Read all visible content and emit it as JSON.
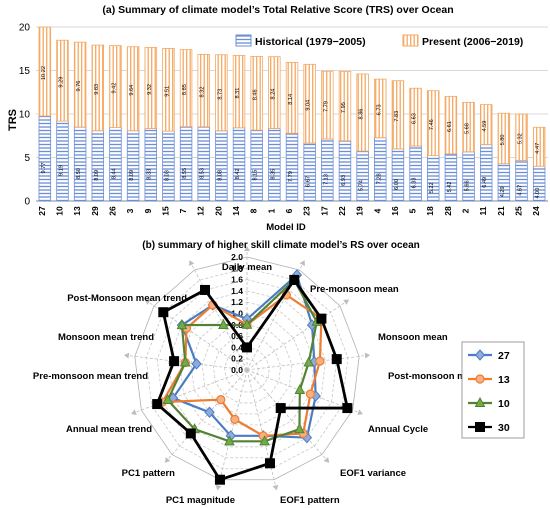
{
  "chart_data": [
    {
      "type": "bar",
      "title": "(a) Summary of climate model’s Total Relative Score (TRS) over Ocean",
      "xlabel": "Model ID",
      "ylabel": "TRS",
      "ylim": [
        0,
        20
      ],
      "yticks": [
        0,
        5,
        10,
        15,
        20
      ],
      "grid": true,
      "stacked": true,
      "legend_position": "top-right",
      "categories": [
        "27",
        "10",
        "13",
        "29",
        "26",
        "3",
        "9",
        "15",
        "7",
        "12",
        "20",
        "14",
        "8",
        "1",
        "6",
        "23",
        "17",
        "22",
        "19",
        "4",
        "16",
        "5",
        "18",
        "28",
        "2",
        "11",
        "21",
        "25",
        "24"
      ],
      "series": [
        {
          "name": "Historical (1979−2005)",
          "color": "#6b8fd6",
          "values": [
            9.77,
            9.19,
            8.5,
            8.09,
            8.44,
            8.09,
            8.33,
            8.03,
            8.55,
            8.53,
            8.08,
            8.42,
            8.15,
            8.35,
            7.79,
            6.67,
            7.13,
            6.93,
            5.74,
            7.28,
            6.0,
            6.33,
            5.22,
            5.42,
            5.66,
            6.49,
            4.29,
            4.67,
            4.0
          ]
        },
        {
          "name": "Present (2006−2019)",
          "color": "#f5a862",
          "values": [
            10.22,
            9.29,
            9.76,
            9.83,
            9.42,
            9.64,
            9.32,
            9.51,
            8.85,
            8.32,
            8.73,
            8.31,
            8.46,
            8.24,
            8.14,
            9.04,
            7.79,
            7.95,
            8.86,
            6.73,
            7.83,
            6.63,
            7.46,
            6.61,
            5.68,
            4.59,
            5.8,
            5.32,
            4.47
          ]
        }
      ]
    },
    {
      "type": "radar",
      "title": "(b) summary of higher skill climate model’s RS over ocean",
      "rlim": [
        0,
        2.0
      ],
      "rticks": [
        "0.0",
        "0.2",
        "0.4",
        "0.6",
        "0.8",
        "1.0",
        "1.2",
        "1.4",
        "1.6",
        "1.8",
        "2.0"
      ],
      "axes": [
        "Daily mean",
        "Pre-monsoon mean",
        "Monsoon mean",
        "Post-monsoon mean",
        "Annual Cycle",
        "EOF1 variance",
        "EOF1 pattern",
        "PC1 magnitude",
        "PC1 pattern",
        "Annual mean trend",
        "Pre-monsoon mean trend",
        "Monsoon mean trend",
        "Post-Monsoon mean trend"
      ],
      "legend_position": "right",
      "series": [
        {
          "name": "27",
          "color": "#4a7cc4",
          "marker": "diamond",
          "values": [
            0.9,
            1.9,
            1.4,
            1.2,
            1.3,
            1.6,
            1.2,
            1.2,
            1.0,
            1.4,
            0.9,
            1.4,
            1.3
          ]
        },
        {
          "name": "13",
          "color": "#ed7d31",
          "marker": "circle",
          "values": [
            0.8,
            1.5,
            1.6,
            1.3,
            1.2,
            1.5,
            1.2,
            0.9,
            0.7,
            1.6,
            1.1,
            1.3,
            1.3
          ]
        },
        {
          "name": "10",
          "color": "#548235",
          "marker": "triangle",
          "values": [
            0.8,
            1.8,
            1.5,
            1.1,
            1.0,
            1.4,
            1.3,
            1.3,
            1.4,
            1.5,
            1.1,
            1.4,
            0.9
          ]
        },
        {
          "name": "30",
          "color": "#000000",
          "marker": "square",
          "values": [
            0.4,
            1.8,
            1.6,
            1.6,
            1.9,
            0.9,
            1.7,
            2.0,
            1.5,
            1.7,
            1.3,
            1.8,
            1.6
          ]
        }
      ]
    }
  ]
}
